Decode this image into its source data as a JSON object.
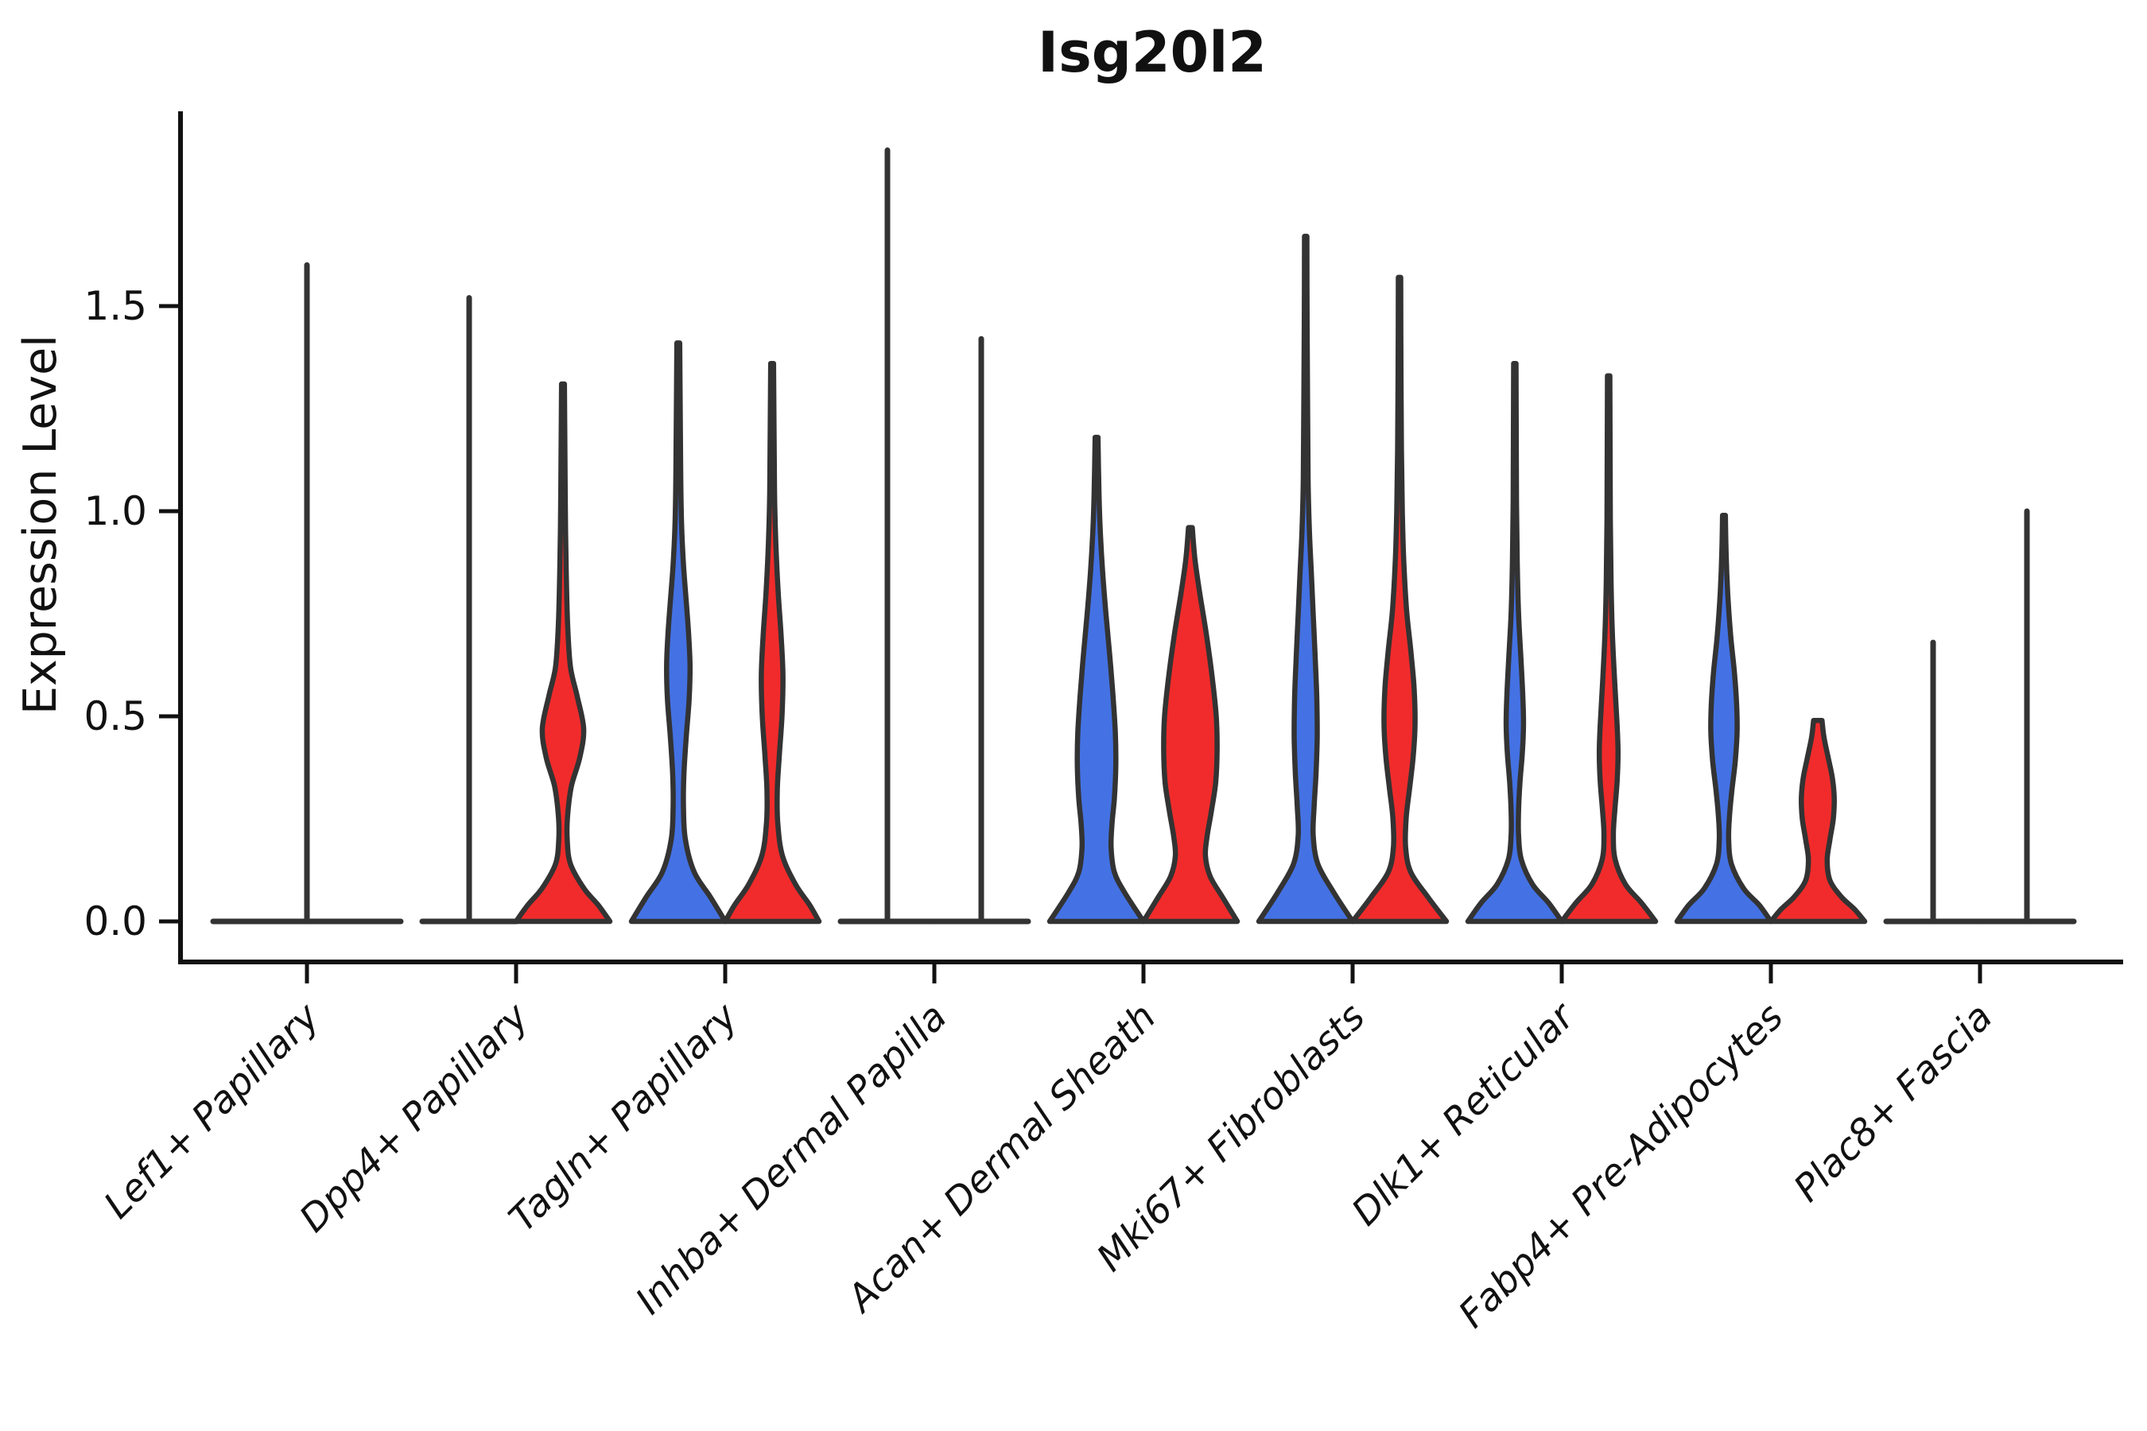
{
  "title": "Isg20l2",
  "y_axis": {
    "label": "Expression Level",
    "tick_labels": [
      "0.0",
      "0.5",
      "1.0",
      "1.5"
    ],
    "tick_values": [
      0.0,
      0.5,
      1.0,
      1.5
    ]
  },
  "colors": {
    "blue": "#4472E4",
    "red": "#F12B2B",
    "violin_stroke": "#333333",
    "axis": "#111111"
  },
  "chart_data": {
    "type": "violin",
    "title": "Isg20l2",
    "ylabel": "Expression Level",
    "ylim": [
      0,
      1.96
    ],
    "yticks": [
      0.0,
      0.5,
      1.0,
      1.5
    ],
    "grid": false,
    "legend": "none (split violins: blue = left group, red = right group)",
    "categories": [
      "Lef1+ Papillary",
      "Dpp4+ Papillary",
      "Tagln+ Papillary",
      "Inhba+ Dermal Papilla",
      "Acan+ Dermal Sheath",
      "Mki67+ Fibroblasts",
      "Dlk1+ Reticular",
      "Fabp4+ Pre-Adipocytes",
      "Plac8+ Fascia"
    ],
    "groups": [
      {
        "category": "Lef1+ Papillary",
        "violins": [
          {
            "side": "center",
            "type": "spike",
            "max": 1.6,
            "base_hw": 2.0
          }
        ]
      },
      {
        "category": "Dpp4+ Papillary",
        "violins": [
          {
            "side": "blue",
            "type": "spike",
            "max": 1.52,
            "base_hw": 1.0
          },
          {
            "side": "red",
            "type": "density",
            "max": 1.31,
            "profile": [
              [
                1.31,
                0.03
              ],
              [
                1.15,
                0.04
              ],
              [
                1.0,
                0.05
              ],
              [
                0.85,
                0.07
              ],
              [
                0.72,
                0.1
              ],
              [
                0.62,
                0.16
              ],
              [
                0.55,
                0.3
              ],
              [
                0.47,
                0.44
              ],
              [
                0.4,
                0.36
              ],
              [
                0.33,
                0.18
              ],
              [
                0.26,
                0.1
              ],
              [
                0.2,
                0.09
              ],
              [
                0.14,
                0.16
              ],
              [
                0.08,
                0.45
              ],
              [
                0.04,
                0.75
              ],
              [
                0,
                1
              ]
            ]
          }
        ]
      },
      {
        "category": "Tagln+ Papillary",
        "violins": [
          {
            "side": "blue",
            "type": "density",
            "max": 1.41,
            "profile": [
              [
                1.41,
                0.03
              ],
              [
                1.25,
                0.04
              ],
              [
                1.1,
                0.05
              ],
              [
                0.97,
                0.07
              ],
              [
                0.87,
                0.11
              ],
              [
                0.78,
                0.17
              ],
              [
                0.7,
                0.22
              ],
              [
                0.62,
                0.25
              ],
              [
                0.54,
                0.23
              ],
              [
                0.45,
                0.17
              ],
              [
                0.36,
                0.12
              ],
              [
                0.28,
                0.11
              ],
              [
                0.2,
                0.15
              ],
              [
                0.12,
                0.34
              ],
              [
                0.06,
                0.68
              ],
              [
                0,
                1
              ]
            ]
          },
          {
            "side": "red",
            "type": "density",
            "max": 1.36,
            "profile": [
              [
                1.36,
                0.03
              ],
              [
                1.2,
                0.04
              ],
              [
                1.05,
                0.05
              ],
              [
                0.92,
                0.08
              ],
              [
                0.8,
                0.13
              ],
              [
                0.7,
                0.19
              ],
              [
                0.6,
                0.23
              ],
              [
                0.5,
                0.21
              ],
              [
                0.4,
                0.15
              ],
              [
                0.32,
                0.11
              ],
              [
                0.24,
                0.12
              ],
              [
                0.16,
                0.22
              ],
              [
                0.09,
                0.5
              ],
              [
                0.04,
                0.8
              ],
              [
                0,
                1
              ]
            ]
          }
        ]
      },
      {
        "category": "Inhba+ Dermal Papilla",
        "violins": [
          {
            "side": "blue",
            "type": "spike",
            "max": 1.88,
            "base_hw": 1.0
          },
          {
            "side": "red",
            "type": "spike",
            "max": 1.42,
            "base_hw": 1.0
          }
        ]
      },
      {
        "category": "Acan+ Dermal Sheath",
        "violins": [
          {
            "side": "blue",
            "type": "density",
            "max": 1.18,
            "profile": [
              [
                1.18,
                0.03
              ],
              [
                1.05,
                0.05
              ],
              [
                0.95,
                0.08
              ],
              [
                0.85,
                0.13
              ],
              [
                0.75,
                0.2
              ],
              [
                0.65,
                0.28
              ],
              [
                0.55,
                0.35
              ],
              [
                0.46,
                0.4
              ],
              [
                0.38,
                0.41
              ],
              [
                0.3,
                0.38
              ],
              [
                0.24,
                0.33
              ],
              [
                0.18,
                0.31
              ],
              [
                0.12,
                0.38
              ],
              [
                0.07,
                0.6
              ],
              [
                0,
                1
              ]
            ]
          },
          {
            "side": "red",
            "type": "density",
            "max": 0.96,
            "profile": [
              [
                0.96,
                0.04
              ],
              [
                0.88,
                0.1
              ],
              [
                0.8,
                0.2
              ],
              [
                0.7,
                0.34
              ],
              [
                0.6,
                0.46
              ],
              [
                0.5,
                0.55
              ],
              [
                0.42,
                0.57
              ],
              [
                0.34,
                0.54
              ],
              [
                0.27,
                0.45
              ],
              [
                0.21,
                0.36
              ],
              [
                0.16,
                0.32
              ],
              [
                0.11,
                0.42
              ],
              [
                0.06,
                0.68
              ],
              [
                0,
                1
              ]
            ]
          }
        ]
      },
      {
        "category": "Mki67+ Fibroblasts",
        "violins": [
          {
            "side": "blue",
            "type": "density",
            "max": 1.67,
            "profile": [
              [
                1.67,
                0.025
              ],
              [
                1.45,
                0.03
              ],
              [
                1.25,
                0.04
              ],
              [
                1.08,
                0.05
              ],
              [
                0.95,
                0.08
              ],
              [
                0.85,
                0.12
              ],
              [
                0.75,
                0.16
              ],
              [
                0.65,
                0.2
              ],
              [
                0.55,
                0.235
              ],
              [
                0.45,
                0.245
              ],
              [
                0.36,
                0.22
              ],
              [
                0.28,
                0.18
              ],
              [
                0.21,
                0.16
              ],
              [
                0.14,
                0.26
              ],
              [
                0.07,
                0.6
              ],
              [
                0,
                1
              ]
            ]
          },
          {
            "side": "red",
            "type": "density",
            "max": 1.57,
            "profile": [
              [
                1.57,
                0.025
              ],
              [
                1.35,
                0.03
              ],
              [
                1.15,
                0.04
              ],
              [
                1.0,
                0.06
              ],
              [
                0.88,
                0.09
              ],
              [
                0.76,
                0.15
              ],
              [
                0.66,
                0.24
              ],
              [
                0.57,
                0.31
              ],
              [
                0.48,
                0.33
              ],
              [
                0.4,
                0.29
              ],
              [
                0.32,
                0.21
              ],
              [
                0.25,
                0.14
              ],
              [
                0.18,
                0.13
              ],
              [
                0.12,
                0.24
              ],
              [
                0.06,
                0.6
              ],
              [
                0,
                1
              ]
            ]
          }
        ]
      },
      {
        "category": "Dlk1+ Reticular",
        "violins": [
          {
            "side": "blue",
            "type": "density",
            "max": 1.36,
            "profile": [
              [
                1.36,
                0.025
              ],
              [
                1.18,
                0.03
              ],
              [
                1.02,
                0.035
              ],
              [
                0.88,
                0.05
              ],
              [
                0.75,
                0.08
              ],
              [
                0.64,
                0.13
              ],
              [
                0.55,
                0.17
              ],
              [
                0.48,
                0.185
              ],
              [
                0.41,
                0.16
              ],
              [
                0.34,
                0.11
              ],
              [
                0.27,
                0.08
              ],
              [
                0.21,
                0.08
              ],
              [
                0.15,
                0.14
              ],
              [
                0.09,
                0.38
              ],
              [
                0.045,
                0.72
              ],
              [
                0,
                1
              ]
            ]
          },
          {
            "side": "red",
            "type": "density",
            "max": 1.33,
            "profile": [
              [
                1.33,
                0.025
              ],
              [
                1.15,
                0.03
              ],
              [
                0.98,
                0.035
              ],
              [
                0.83,
                0.05
              ],
              [
                0.7,
                0.08
              ],
              [
                0.58,
                0.13
              ],
              [
                0.48,
                0.18
              ],
              [
                0.41,
                0.2
              ],
              [
                0.34,
                0.18
              ],
              [
                0.27,
                0.13
              ],
              [
                0.21,
                0.1
              ],
              [
                0.15,
                0.14
              ],
              [
                0.09,
                0.36
              ],
              [
                0.045,
                0.7
              ],
              [
                0,
                1
              ]
            ]
          }
        ]
      },
      {
        "category": "Fabp4+ Pre-Adipocytes",
        "violins": [
          {
            "side": "blue",
            "type": "density",
            "max": 0.99,
            "profile": [
              [
                0.99,
                0.03
              ],
              [
                0.9,
                0.045
              ],
              [
                0.8,
                0.08
              ],
              [
                0.7,
                0.14
              ],
              [
                0.61,
                0.22
              ],
              [
                0.53,
                0.27
              ],
              [
                0.46,
                0.28
              ],
              [
                0.39,
                0.24
              ],
              [
                0.32,
                0.17
              ],
              [
                0.26,
                0.12
              ],
              [
                0.2,
                0.1
              ],
              [
                0.14,
                0.16
              ],
              [
                0.08,
                0.42
              ],
              [
                0.04,
                0.75
              ],
              [
                0,
                1
              ]
            ]
          },
          {
            "side": "red",
            "type": "density",
            "max": 0.49,
            "profile": [
              [
                0.49,
                0.09
              ],
              [
                0.45,
                0.13
              ],
              [
                0.4,
                0.22
              ],
              [
                0.35,
                0.31
              ],
              [
                0.3,
                0.35
              ],
              [
                0.25,
                0.33
              ],
              [
                0.2,
                0.26
              ],
              [
                0.15,
                0.2
              ],
              [
                0.1,
                0.26
              ],
              [
                0.06,
                0.5
              ],
              [
                0.03,
                0.78
              ],
              [
                0,
                1
              ]
            ]
          }
        ]
      },
      {
        "category": "Plac8+ Fascia",
        "violins": [
          {
            "side": "blue",
            "type": "spike",
            "max": 0.68,
            "base_hw": 1.0
          },
          {
            "side": "red",
            "type": "spike",
            "max": 1.0,
            "base_hw": 1.0
          }
        ]
      }
    ]
  }
}
